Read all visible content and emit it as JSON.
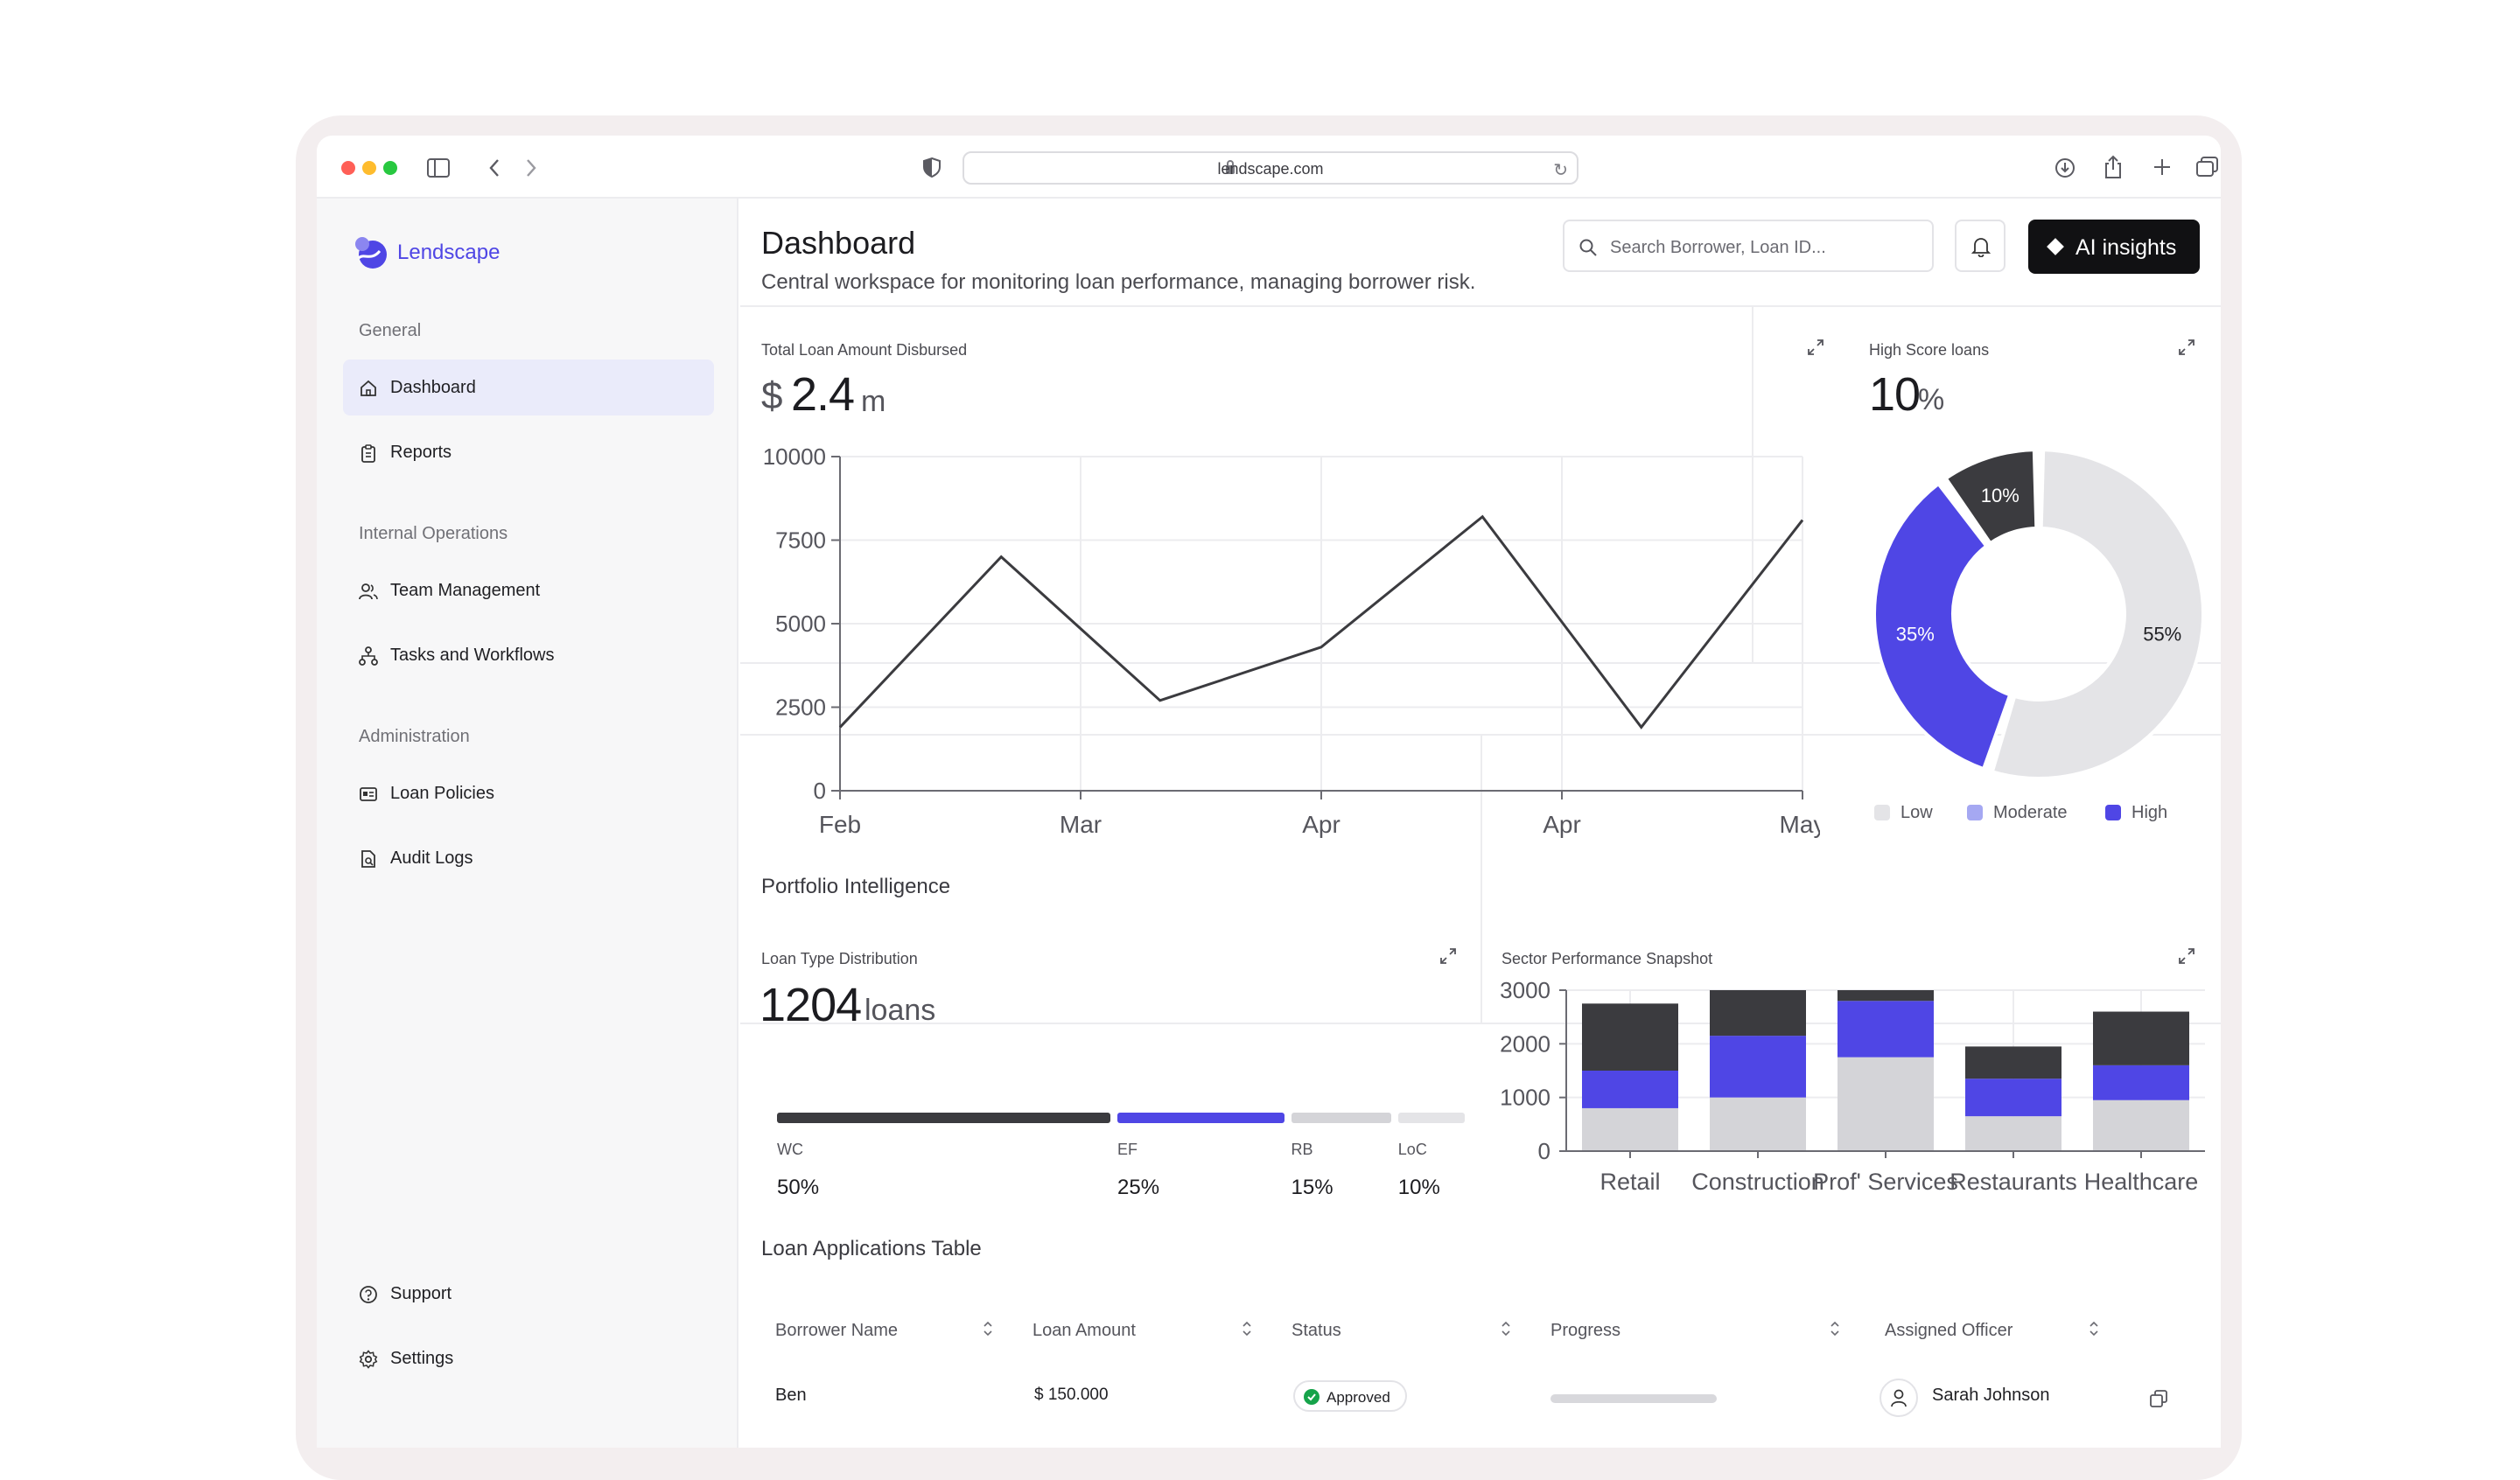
{
  "browser": {
    "url": "lendscape.com"
  },
  "sidebar": {
    "brand": "Lendscape",
    "sections": {
      "general": "General",
      "internal": "Internal Operations",
      "admin": "Administration"
    },
    "items": {
      "dashboard": "Dashboard",
      "reports": "Reports",
      "team": "Team Management",
      "tasks": "Tasks and Workflows",
      "policies": "Loan Policies",
      "audit": "Audit Logs",
      "support": "Support",
      "settings": "Settings"
    }
  },
  "header": {
    "title": "Dashboard",
    "subtitle": "Central workspace for monitoring loan performance, managing borrower risk.",
    "search_placeholder": "Search Borrower, Loan ID...",
    "ai_button": "AI insights"
  },
  "total_loan": {
    "title": "Total Loan Amount Disbursed",
    "currency": "$",
    "value": "2.4",
    "unit": "m"
  },
  "high_score": {
    "title": "High Score loans",
    "value": "10",
    "unit": "%"
  },
  "portfolio": {
    "title": "Portfolio Intelligence"
  },
  "loan_type": {
    "title": "Loan Type Distribution",
    "value": "1204",
    "unit": "loans",
    "items": [
      {
        "code": "WC",
        "pct": "50%",
        "share": 50,
        "color": "#3b3b3f"
      },
      {
        "code": "EF",
        "pct": "25%",
        "share": 25,
        "color": "#4f46e5"
      },
      {
        "code": "RB",
        "pct": "15%",
        "share": 15,
        "color": "#d4d4d8"
      },
      {
        "code": "LoC",
        "pct": "10%",
        "share": 10,
        "color": "#e4e4e7"
      }
    ]
  },
  "sector": {
    "title": "Sector Performance Snapshot"
  },
  "table": {
    "title": "Loan Applications Table",
    "headers": {
      "borrower": "Borrower Name",
      "amount": "Loan Amount",
      "status": "Status",
      "progress": "Progress",
      "officer": "Assigned Officer"
    },
    "rows": [
      {
        "borrower": "Ben",
        "amount": "$ 150.000",
        "status": "Approved",
        "progress": 0,
        "officer": "Sarah Johnson"
      }
    ]
  },
  "chart_data": [
    {
      "type": "line",
      "x": [
        "Feb",
        "Mar",
        "Apr",
        "Apr",
        "May"
      ],
      "points": [
        [
          0,
          1900
        ],
        [
          0.67,
          7000
        ],
        [
          1.33,
          2700
        ],
        [
          2,
          4300
        ],
        [
          2.67,
          8200
        ],
        [
          3.33,
          1900
        ],
        [
          4,
          8100
        ]
      ],
      "yticks": [
        0,
        2500,
        5000,
        7500,
        10000
      ],
      "ylim": [
        0,
        10000
      ],
      "grid": true,
      "color": "#3b3b3f"
    },
    {
      "type": "pie",
      "donut": true,
      "slices": [
        {
          "label": "55%",
          "value": 55,
          "color": "#e4e4e7"
        },
        {
          "label": "35%",
          "value": 35,
          "color": "#4f46e5"
        },
        {
          "label": "10%",
          "value": 10,
          "color": "#3b3b3f"
        }
      ],
      "legend": [
        {
          "name": "Low",
          "color": "#e4e4e7"
        },
        {
          "name": "Moderate",
          "color": "#a5a8f2"
        },
        {
          "name": "High",
          "color": "#4f46e5"
        }
      ],
      "legend_position": "bottom"
    },
    {
      "type": "bar",
      "stacked": true,
      "categories": [
        "Retail",
        "Construction",
        "Prof' Services",
        "Restaurants",
        "Healthcare"
      ],
      "series": [
        {
          "color": "#d4d4d8",
          "values": [
            800,
            1000,
            1750,
            650,
            950
          ]
        },
        {
          "color": "#4f46e5",
          "values": [
            700,
            1150,
            1050,
            700,
            650
          ]
        },
        {
          "color": "#3b3b3f",
          "values": [
            1250,
            850,
            200,
            600,
            1000
          ]
        }
      ],
      "yticks": [
        0,
        1000,
        2000,
        3000
      ],
      "ylim": [
        0,
        3000
      ],
      "grid": true
    }
  ]
}
